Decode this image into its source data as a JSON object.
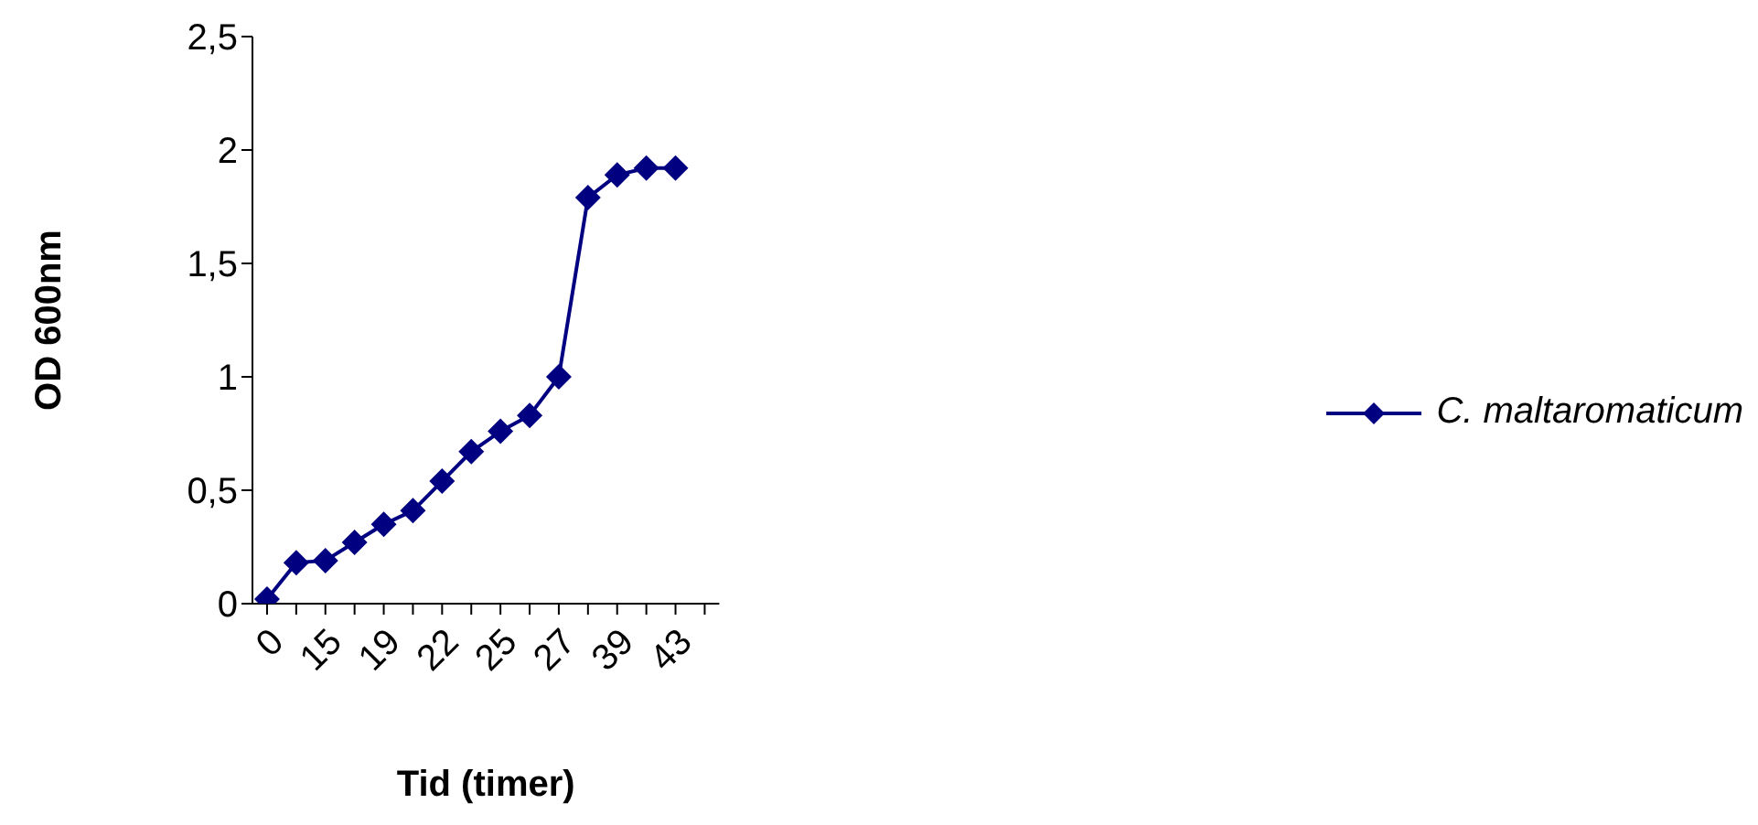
{
  "chart_data": {
    "type": "line",
    "xlabel": "Tid (timer)",
    "ylabel": "OD 600nm",
    "categories": [
      "0",
      null,
      "15",
      null,
      "19",
      null,
      "22",
      null,
      "25",
      null,
      "27",
      null,
      "39",
      null,
      "43",
      null
    ],
    "series": [
      {
        "name": "C. maltaromaticum",
        "color": "#000080",
        "values": [
          0.02,
          0.18,
          0.19,
          0.27,
          0.35,
          0.41,
          0.54,
          0.67,
          0.76,
          0.83,
          1.0,
          1.79,
          1.89,
          1.92,
          1.92,
          null
        ]
      }
    ],
    "ylim": [
      0,
      2.5
    ],
    "yticks": [
      0,
      {
        "value": 0.5,
        "label": "0,5"
      },
      1,
      {
        "value": 1.5,
        "label": "1,5"
      },
      2,
      {
        "value": 2.5,
        "label": "2,5"
      }
    ],
    "grid": false,
    "legend": "right",
    "marker": "diamond",
    "line_style": "solid"
  }
}
